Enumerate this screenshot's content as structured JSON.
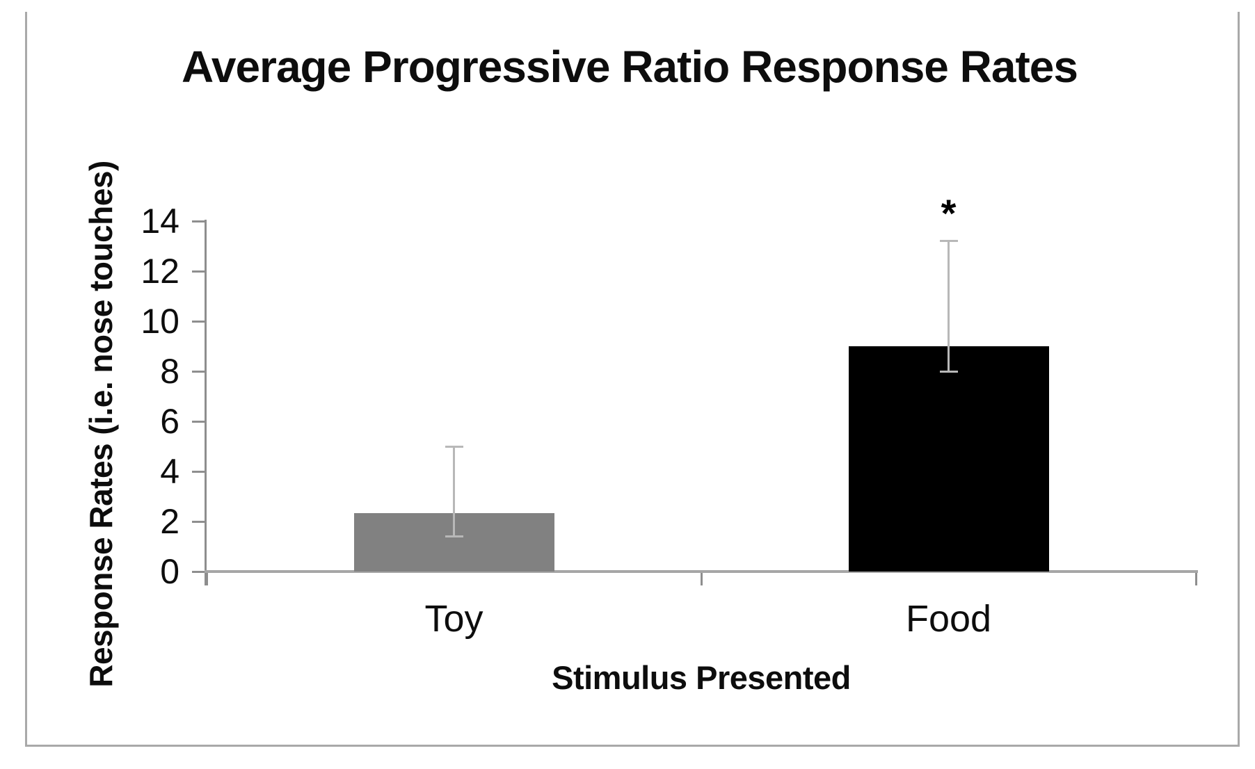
{
  "chart_data": {
    "type": "bar",
    "title": "Average Progressive Ratio Response Rates",
    "xlabel": "Stimulus Presented",
    "ylabel": "Response Rates (i.e. nose touches)",
    "categories": [
      "Toy",
      "Food"
    ],
    "values": [
      2.33,
      9.0
    ],
    "error_high": [
      5.0,
      13.2
    ],
    "error_low": [
      1.4,
      8.0
    ],
    "bar_colors": [
      "#818181",
      "#000000"
    ],
    "yticks": [
      0,
      2,
      4,
      6,
      8,
      10,
      12,
      14
    ],
    "ylim": [
      0,
      14
    ],
    "grid": false,
    "legend": false,
    "annotations": [
      {
        "target": "Food",
        "text": "*"
      }
    ],
    "axis_color": "#8e8e8e",
    "baseline_color": "#a6a6a6",
    "error_color": "#b8b8b8"
  }
}
